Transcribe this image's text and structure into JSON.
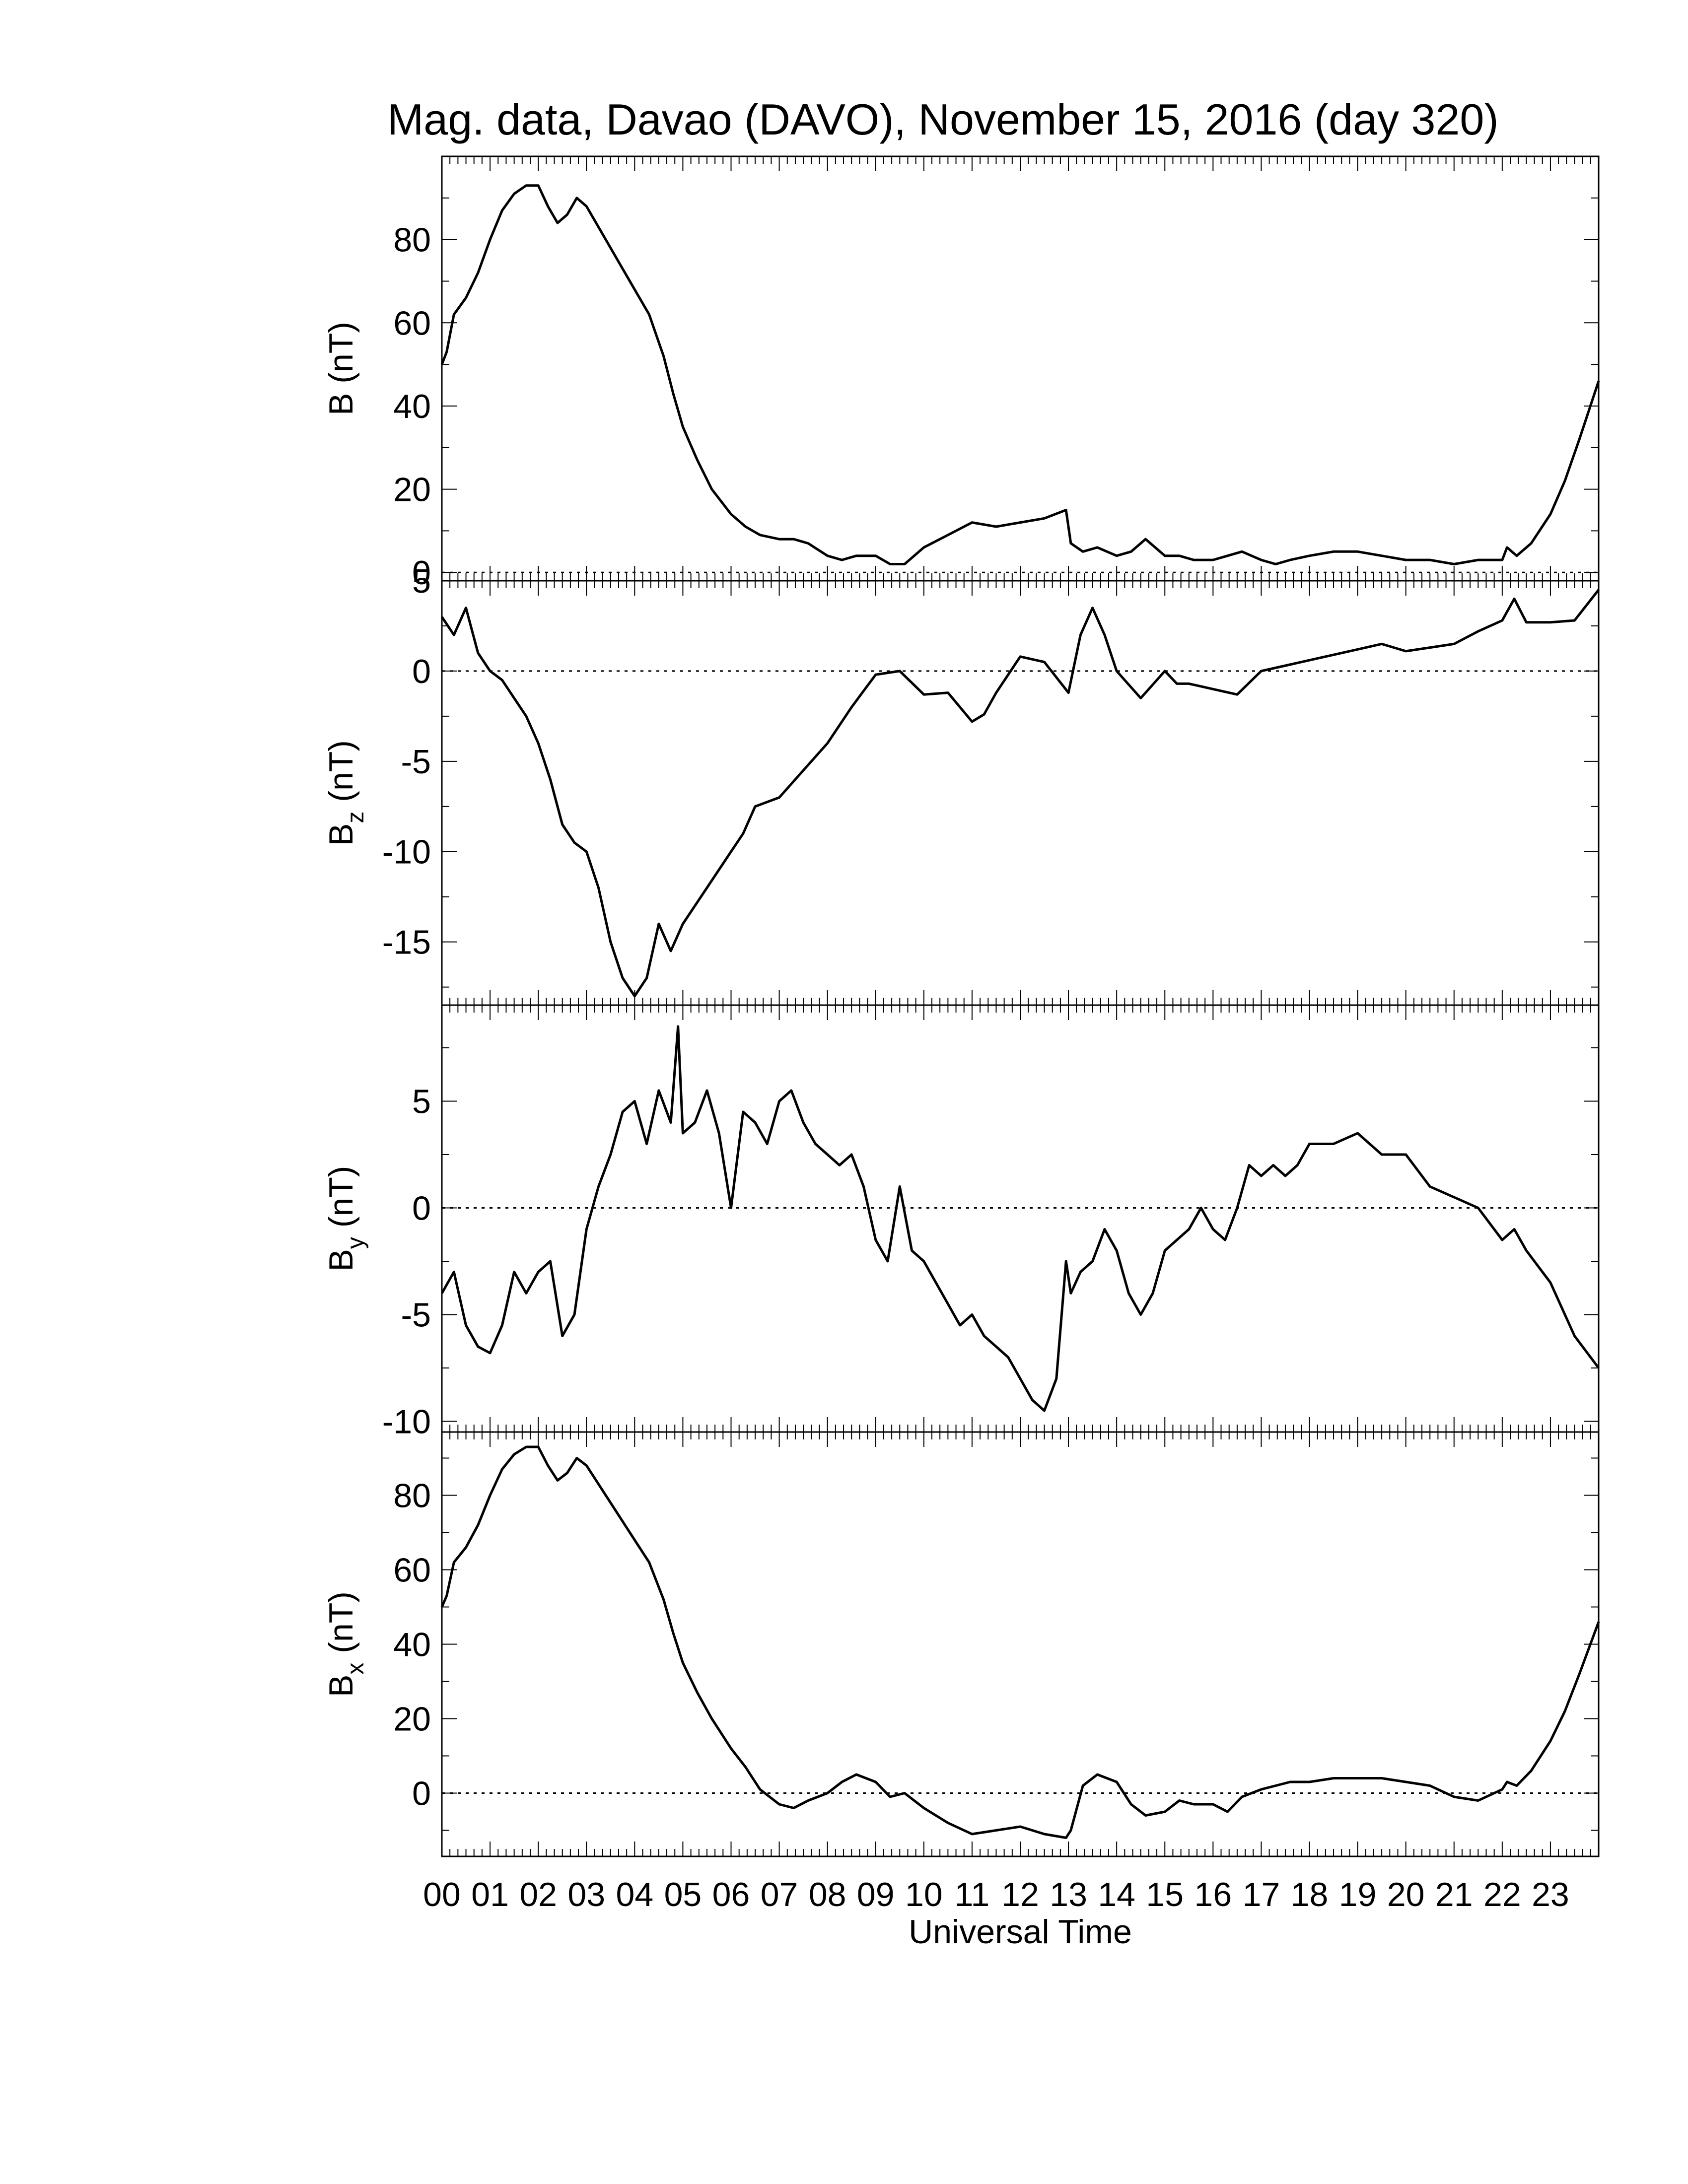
{
  "title": "Mag. data, Davao (DAVO), November 15, 2016 (day 320)",
  "x_axis": {
    "label": "Universal Time",
    "ticks": [
      "00",
      "01",
      "02",
      "03",
      "04",
      "05",
      "06",
      "07",
      "08",
      "09",
      "10",
      "11",
      "12",
      "13",
      "14",
      "15",
      "16",
      "17",
      "18",
      "19",
      "20",
      "21",
      "22",
      "23"
    ]
  },
  "chart_data": [
    {
      "type": "line",
      "panel": "B",
      "ylabel": "B (nT)",
      "ylabel_main": "B (nT)",
      "ylabel_sub": "",
      "xlim": [
        0,
        24
      ],
      "ylim": [
        -2,
        100
      ],
      "yticks": [
        0,
        20,
        40,
        60,
        80
      ],
      "zero_line": true,
      "x": [
        0,
        0.1,
        0.25,
        0.5,
        0.75,
        1,
        1.25,
        1.5,
        1.75,
        2,
        2.2,
        2.4,
        2.6,
        2.8,
        3,
        3.3,
        3.6,
        4,
        4.3,
        4.6,
        4.8,
        5,
        5.3,
        5.6,
        6,
        6.3,
        6.6,
        7,
        7.3,
        7.6,
        8,
        8.3,
        8.6,
        9,
        9.3,
        9.6,
        10,
        10.5,
        11,
        11.5,
        12,
        12.5,
        12.95,
        13.05,
        13.3,
        13.6,
        14,
        14.3,
        14.6,
        15,
        15.3,
        15.6,
        16,
        16.3,
        16.6,
        17,
        17.3,
        17.6,
        18,
        18.5,
        19,
        19.5,
        20,
        20.5,
        21,
        21.5,
        22,
        22.1,
        22.3,
        22.6,
        23,
        23.3,
        23.6,
        24
      ],
      "values": [
        50,
        53,
        62,
        66,
        72,
        80,
        87,
        91,
        93,
        93,
        88,
        84,
        86,
        90,
        88,
        82,
        76,
        68,
        62,
        52,
        43,
        35,
        27,
        20,
        14,
        11,
        9,
        8,
        8,
        7,
        4,
        3,
        4,
        4,
        2,
        2,
        6,
        9,
        12,
        11,
        12,
        13,
        15,
        7,
        5,
        6,
        4,
        5,
        8,
        4,
        4,
        3,
        3,
        4,
        5,
        3,
        2,
        3,
        4,
        5,
        5,
        4,
        3,
        3,
        2,
        3,
        3,
        6,
        4,
        7,
        14,
        22,
        32,
        46
      ],
      "line_color": "#000000"
    },
    {
      "type": "line",
      "panel": "Bz",
      "ylabel": "Bz (nT)",
      "ylabel_main": "B",
      "ylabel_sub": "z",
      "ylabel_unit": " (nT)",
      "xlim": [
        0,
        24
      ],
      "ylim": [
        -18.5,
        5
      ],
      "yticks": [
        -15,
        -10,
        -5,
        0,
        5
      ],
      "zero_line": true,
      "x": [
        0,
        0.25,
        0.5,
        0.75,
        1,
        1.25,
        1.5,
        1.75,
        2,
        2.25,
        2.5,
        2.75,
        3,
        3.25,
        3.5,
        3.75,
        4,
        4.25,
        4.5,
        4.75,
        5,
        5.25,
        5.5,
        5.75,
        6,
        6.25,
        6.5,
        7,
        7.5,
        8,
        8.5,
        9,
        9.5,
        10,
        10.5,
        11,
        11.25,
        11.5,
        12,
        12.5,
        13,
        13.25,
        13.5,
        13.75,
        14,
        14.5,
        15,
        15.25,
        15.5,
        16,
        16.5,
        17,
        17.5,
        18,
        18.5,
        19,
        19.5,
        20,
        20.5,
        21,
        21.5,
        22,
        22.25,
        22.5,
        23,
        23.5,
        24
      ],
      "values": [
        3,
        2,
        3.5,
        1,
        0,
        -0.5,
        -1.5,
        -2.5,
        -4,
        -6,
        -8.5,
        -9.5,
        -10,
        -12,
        -15,
        -17,
        -18,
        -17,
        -14,
        -15.5,
        -14,
        -13,
        -12,
        -11,
        -10,
        -9,
        -7.5,
        -7,
        -5.5,
        -4,
        -2,
        -0.2,
        0,
        -1.3,
        -1.2,
        -2.8,
        -2.4,
        -1.2,
        0.8,
        0.5,
        -1.2,
        2,
        3.5,
        2,
        0,
        -1.5,
        0,
        -0.7,
        -0.7,
        -1,
        -1.3,
        0,
        0.3,
        0.6,
        0.9,
        1.2,
        1.5,
        1.1,
        1.3,
        1.5,
        2.2,
        2.8,
        4,
        2.7,
        2.7,
        2.8,
        4.5
      ],
      "line_color": "#000000"
    },
    {
      "type": "line",
      "panel": "By",
      "ylabel": "By (nT)",
      "ylabel_main": "B",
      "ylabel_sub": "y",
      "ylabel_unit": " (nT)",
      "xlim": [
        0,
        24
      ],
      "ylim": [
        -10.5,
        9.5
      ],
      "yticks": [
        -10,
        -5,
        0,
        5
      ],
      "zero_line": true,
      "x": [
        0,
        0.25,
        0.5,
        0.75,
        1,
        1.25,
        1.5,
        1.75,
        2,
        2.25,
        2.5,
        2.75,
        3,
        3.25,
        3.5,
        3.75,
        4,
        4.25,
        4.5,
        4.75,
        4.9,
        5,
        5.25,
        5.5,
        5.75,
        6,
        6.25,
        6.5,
        6.75,
        7,
        7.25,
        7.5,
        7.75,
        8,
        8.25,
        8.5,
        8.75,
        9,
        9.25,
        9.5,
        9.75,
        10,
        10.25,
        10.5,
        10.75,
        11,
        11.25,
        11.5,
        11.75,
        12,
        12.25,
        12.5,
        12.75,
        12.95,
        13.05,
        13.25,
        13.5,
        13.75,
        14,
        14.25,
        14.5,
        14.75,
        15,
        15.25,
        15.5,
        15.75,
        16,
        16.25,
        16.5,
        16.75,
        17,
        17.25,
        17.5,
        17.75,
        18,
        18.5,
        19,
        19.5,
        20,
        20.5,
        21,
        21.5,
        22,
        22.25,
        22.5,
        23,
        23.5,
        24
      ],
      "values": [
        -4,
        -3,
        -5.5,
        -6.5,
        -6.8,
        -5.5,
        -3,
        -4,
        -3,
        -2.5,
        -6,
        -5,
        -1,
        1,
        2.5,
        4.5,
        5,
        3,
        5.5,
        4,
        8.5,
        3.5,
        4,
        5.5,
        3.5,
        0,
        4.5,
        4,
        3,
        5,
        5.5,
        4,
        3,
        2.5,
        2,
        2.5,
        1,
        -1.5,
        -2.5,
        1,
        -2,
        -2.5,
        -3.5,
        -4.5,
        -5.5,
        -5,
        -6,
        -6.5,
        -7,
        -8,
        -9,
        -9.5,
        -8,
        -2.5,
        -4,
        -3,
        -2.5,
        -1,
        -2,
        -4,
        -5,
        -4,
        -2,
        -1.5,
        -1,
        0,
        -1,
        -1.5,
        0,
        2,
        1.5,
        2,
        1.5,
        2,
        3,
        3,
        3.5,
        2.5,
        2.5,
        1,
        0.5,
        0,
        -1.5,
        -1,
        -2,
        -3.5,
        -6,
        -7.5
      ],
      "line_color": "#000000"
    },
    {
      "type": "line",
      "panel": "Bx",
      "ylabel": "Bx (nT)",
      "ylabel_main": "B",
      "ylabel_sub": "x",
      "ylabel_unit": " (nT)",
      "xlim": [
        0,
        24
      ],
      "ylim": [
        -17,
        97
      ],
      "yticks": [
        0,
        20,
        40,
        60,
        80
      ],
      "zero_line": true,
      "x": [
        0,
        0.1,
        0.25,
        0.5,
        0.75,
        1,
        1.25,
        1.5,
        1.75,
        2,
        2.2,
        2.4,
        2.6,
        2.8,
        3,
        3.3,
        3.6,
        4,
        4.3,
        4.6,
        4.8,
        5,
        5.3,
        5.6,
        6,
        6.3,
        6.6,
        7,
        7.3,
        7.6,
        8,
        8.3,
        8.6,
        9,
        9.3,
        9.6,
        10,
        10.5,
        11,
        11.5,
        12,
        12.5,
        12.95,
        13.05,
        13.3,
        13.6,
        14,
        14.3,
        14.6,
        15,
        15.3,
        15.6,
        16,
        16.3,
        16.6,
        17,
        17.3,
        17.6,
        18,
        18.5,
        19,
        19.5,
        20,
        20.5,
        21,
        21.5,
        22,
        22.1,
        22.3,
        22.6,
        23,
        23.3,
        23.6,
        24
      ],
      "values": [
        50,
        53,
        62,
        66,
        72,
        80,
        87,
        91,
        93,
        93,
        88,
        84,
        86,
        90,
        88,
        82,
        76,
        68,
        62,
        52,
        43,
        35,
        27,
        20,
        12,
        7,
        1,
        -3,
        -4,
        -2,
        0,
        3,
        5,
        3,
        -1,
        0,
        -4,
        -8,
        -11,
        -10,
        -9,
        -11,
        -12,
        -10,
        2,
        5,
        3,
        -3,
        -6,
        -5,
        -2,
        -3,
        -3,
        -5,
        -1,
        1,
        2,
        3,
        3,
        4,
        4,
        4,
        3,
        2,
        -1,
        -2,
        1,
        3,
        2,
        6,
        14,
        22,
        32,
        46
      ],
      "line_color": "#000000"
    }
  ]
}
